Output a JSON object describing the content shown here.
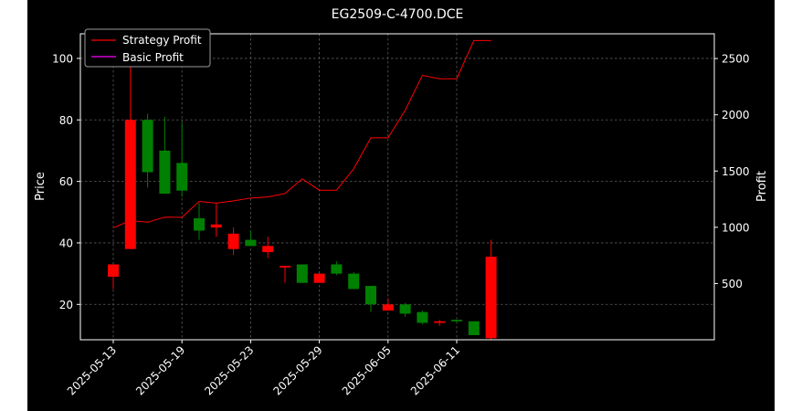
{
  "chart_data": {
    "type": "candlestick+line",
    "title": "EG2509-C-4700.DCE",
    "ylabel_left": "Price",
    "ylabel_right": "Profit",
    "ylim_left": [
      8.5,
      108
    ],
    "ylim_right": [
      0,
      2720
    ],
    "yticks_left": [
      20,
      40,
      60,
      80,
      100
    ],
    "yticks_right": [
      500,
      1000,
      1500,
      2000,
      2500
    ],
    "xticks": [
      {
        "index": 0,
        "label": "2025-05-13"
      },
      {
        "index": 4,
        "label": "2025-05-19"
      },
      {
        "index": 8,
        "label": "2025-05-23"
      },
      {
        "index": 12,
        "label": "2025-05-29"
      },
      {
        "index": 16,
        "label": "2025-06-05"
      },
      {
        "index": 20,
        "label": "2025-06-11"
      }
    ],
    "grid": true,
    "legend_position": "top-left",
    "colors": {
      "up": "#ff0000",
      "down": "#008000",
      "strategy": "#ff0000",
      "basic": "#ff00ff"
    },
    "candles": [
      {
        "o": 29,
        "h": 33,
        "l": 25,
        "c": 33
      },
      {
        "o": 38,
        "h": 105,
        "l": 38,
        "c": 80
      },
      {
        "o": 80,
        "h": 82,
        "l": 58,
        "c": 63
      },
      {
        "o": 70,
        "h": 81,
        "l": 56,
        "c": 56
      },
      {
        "o": 66,
        "h": 79,
        "l": 55,
        "c": 57
      },
      {
        "o": 48,
        "h": 53,
        "l": 41,
        "c": 44
      },
      {
        "o": 45,
        "h": 53,
        "l": 42,
        "c": 46
      },
      {
        "o": 38,
        "h": 45,
        "l": 36,
        "c": 43
      },
      {
        "o": 41,
        "h": 44,
        "l": 39,
        "c": 39
      },
      {
        "o": 37,
        "h": 42,
        "l": 35,
        "c": 39
      },
      {
        "o": 32,
        "h": 32.5,
        "l": 27,
        "c": 32.5
      },
      {
        "o": 33,
        "h": 33,
        "l": 27,
        "c": 27
      },
      {
        "o": 27,
        "h": 30,
        "l": 27,
        "c": 30
      },
      {
        "o": 33,
        "h": 34,
        "l": 29.5,
        "c": 30
      },
      {
        "o": 30,
        "h": 30.5,
        "l": 25,
        "c": 25
      },
      {
        "o": 26,
        "h": 26,
        "l": 17.5,
        "c": 20
      },
      {
        "o": 18,
        "h": 22,
        "l": 18,
        "c": 20
      },
      {
        "o": 20,
        "h": 20.5,
        "l": 16,
        "c": 17
      },
      {
        "o": 17.5,
        "h": 18,
        "l": 13.5,
        "c": 14
      },
      {
        "o": 14,
        "h": 15,
        "l": 13,
        "c": 14.5
      },
      {
        "o": 15,
        "h": 15,
        "l": 14,
        "c": 14.5
      },
      {
        "o": 14.5,
        "h": 14.5,
        "l": 10,
        "c": 10
      },
      {
        "o": 9,
        "h": 41,
        "l": 8.5,
        "c": 35.5
      }
    ],
    "series": [
      {
        "name": "Strategy Profit",
        "values": [
          995,
          1060,
          1045,
          1090,
          1088,
          1230,
          1215,
          1235,
          1260,
          1270,
          1300,
          1430,
          1330,
          1330,
          1520,
          1795,
          1795,
          2040,
          2350,
          2320,
          2320,
          2660,
          2660
        ]
      },
      {
        "name": "Basic Profit",
        "values": []
      }
    ]
  }
}
